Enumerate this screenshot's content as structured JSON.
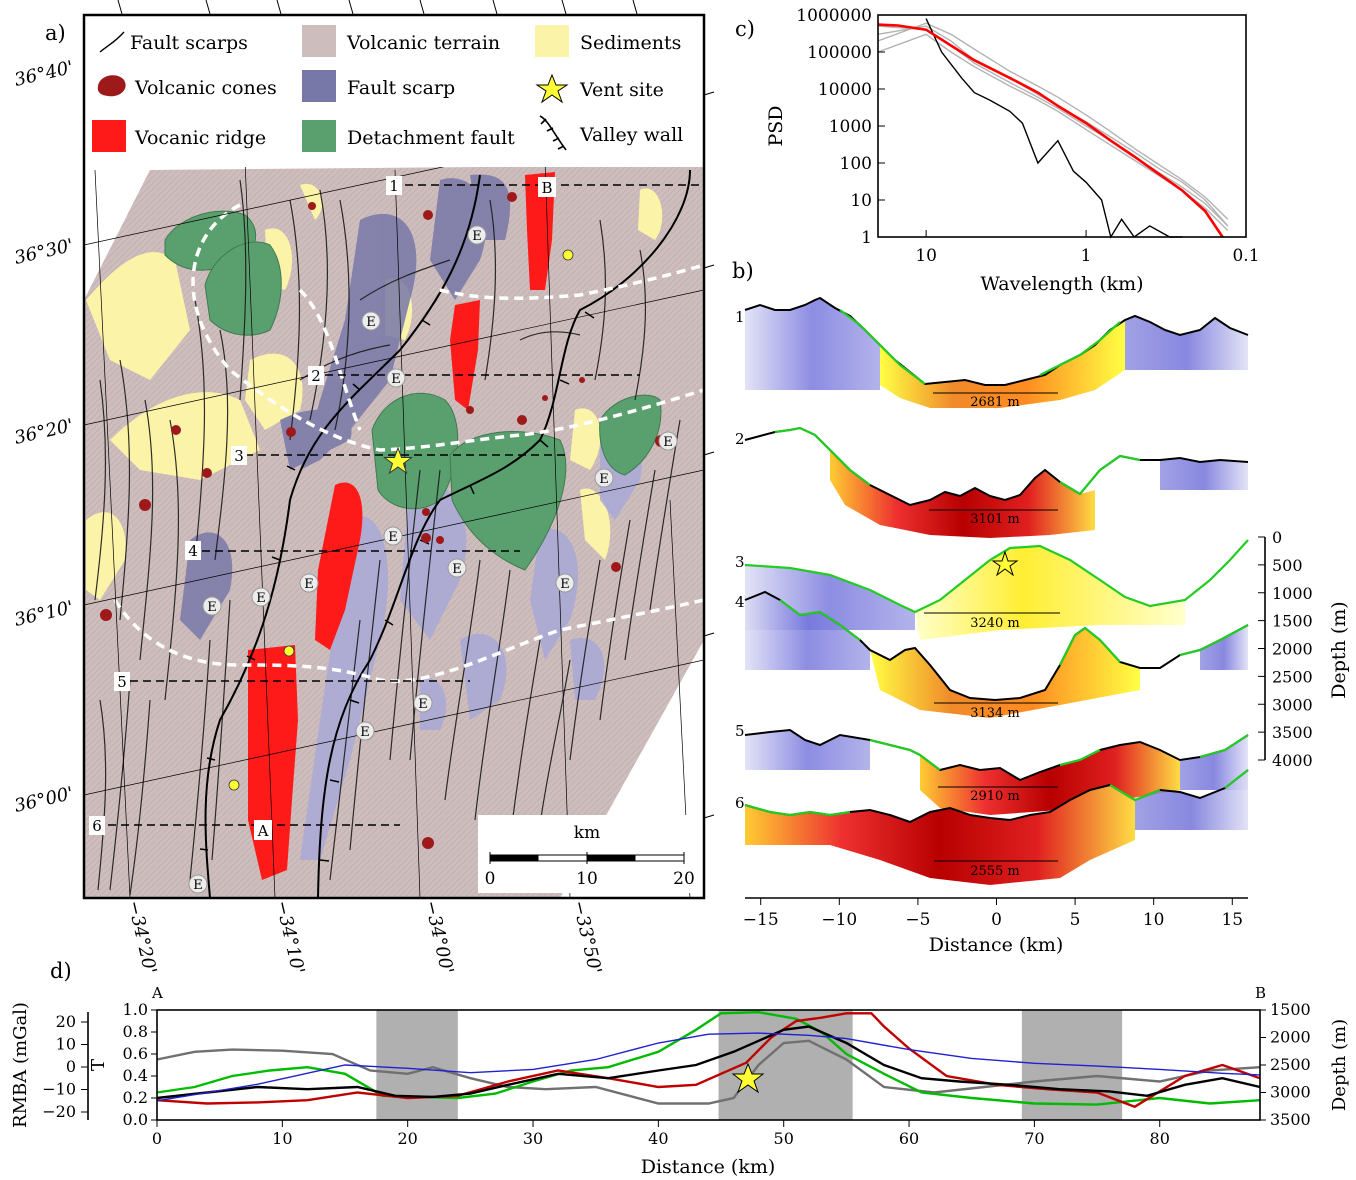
{
  "panels": {
    "a": {
      "label": "a)",
      "legend": [
        {
          "label": "Fault scarps",
          "symbol": "line",
          "color": "#000000"
        },
        {
          "label": "Volcanic terrain",
          "symbol": "box",
          "color": "#cdbdbd"
        },
        {
          "label": "Sediments",
          "symbol": "box",
          "color": "#fbf3a8"
        },
        {
          "label": "Volcanic cones",
          "symbol": "blob",
          "color": "#9e1a1a"
        },
        {
          "label": "Fault scarp",
          "symbol": "box",
          "color": "#7878a8"
        },
        {
          "label": "Vent site",
          "symbol": "star",
          "color": "#ffff33"
        },
        {
          "label": "Vocanic ridge",
          "symbol": "box",
          "color": "#ff1a1a"
        },
        {
          "label": "Detachment fault",
          "symbol": "box",
          "color": "#5aa06e"
        },
        {
          "label": "Valley wall",
          "symbol": "ticked-line",
          "color": "#000000"
        }
      ],
      "lat_labels": [
        "36°40'",
        "36°30'",
        "36°20'",
        "36°10'",
        "36°00'"
      ],
      "lon_labels": [
        "−34°20'",
        "−34°10'",
        "−34°00'",
        "−33°50'"
      ],
      "profile_labels": [
        "1",
        "2",
        "3",
        "4",
        "5",
        "6"
      ],
      "point_labels": [
        "A",
        "B"
      ],
      "domain_marker": "E",
      "scale_bar": {
        "unit": "km",
        "ticks": [
          "0",
          "10",
          "20"
        ]
      },
      "colors": {
        "volcanic_terrain": "#cdbdbd",
        "sediments": "#fbf3a8",
        "fault_scarp": "#7878a8",
        "volcanic_ridge": "#ff1a1a",
        "detachment": "#5aa06e",
        "cones": "#9e1a1a",
        "vent": "#ffff33"
      }
    },
    "b": {
      "label": "b)",
      "widths": [
        "2681 m",
        "3101 m",
        "3240 m",
        "3134 m",
        "2910 m",
        "2555 m"
      ]
    },
    "c": {
      "label": "c)"
    },
    "d": {
      "label": "d)",
      "end_labels": [
        "A",
        "B"
      ]
    }
  },
  "chart_data": [
    {
      "panel": "c",
      "type": "line",
      "xlabel": "Wavelength (km)",
      "ylabel": "PSD",
      "x_scale": "log",
      "x_reversed": true,
      "xlim": [
        20,
        0.1
      ],
      "x_ticks": [
        {
          "value": 10,
          "label": "10"
        },
        {
          "value": 1,
          "label": "1"
        },
        {
          "value": 0.1,
          "label": "0.1"
        }
      ],
      "y_scale": "log",
      "ylim": [
        1,
        1000000
      ],
      "y_ticks": [
        {
          "value": 1,
          "label": "1"
        },
        {
          "value": 10,
          "label": "10"
        },
        {
          "value": 100,
          "label": "100"
        },
        {
          "value": 1000,
          "label": "1000"
        },
        {
          "value": 10000,
          "label": "10000"
        },
        {
          "value": 100000,
          "label": "100000"
        },
        {
          "value": 1000000,
          "label": "1000000"
        }
      ],
      "series": [
        {
          "color": "#b3b3b3",
          "x": [
            20,
            10,
            7,
            5,
            3,
            2,
            1.5,
            1,
            0.7,
            0.5,
            0.35,
            0.25,
            0.18,
            0.13
          ],
          "y": [
            300000,
            500000,
            200000,
            60000,
            20000,
            7000,
            3500,
            1300,
            500,
            200,
            70,
            30,
            10,
            2
          ]
        },
        {
          "color": "#b3b3b3",
          "x": [
            20,
            10,
            7,
            5,
            3,
            2,
            1.5,
            1,
            0.7,
            0.5,
            0.35,
            0.25,
            0.18,
            0.13
          ],
          "y": [
            100000,
            300000,
            100000,
            40000,
            12000,
            5000,
            2500,
            800,
            300,
            120,
            45,
            18,
            6,
            1.5
          ]
        },
        {
          "color": "#b3b3b3",
          "x": [
            20,
            10,
            7,
            5,
            3,
            2,
            1.5,
            1,
            0.7,
            0.5,
            0.35,
            0.25,
            0.18,
            0.13
          ],
          "y": [
            200000,
            600000,
            300000,
            120000,
            30000,
            12000,
            6000,
            2000,
            700,
            250,
            90,
            35,
            12,
            3
          ]
        },
        {
          "color": "#b3b3b3",
          "x": [
            20,
            10,
            7,
            5,
            3,
            2,
            1.5,
            1,
            0.7,
            0.5,
            0.35,
            0.25,
            0.18,
            0.13
          ],
          "y": [
            500000,
            400000,
            150000,
            50000,
            15000,
            6000,
            3000,
            1000,
            400,
            150,
            55,
            22,
            8,
            2
          ]
        },
        {
          "color": "#000000",
          "x": [
            10,
            8,
            6,
            5,
            4,
            3,
            2.5,
            2,
            1.5,
            1.2,
            1,
            0.8,
            0.7,
            0.6,
            0.5,
            0.4,
            0.3,
            0.25
          ],
          "y": [
            800000,
            100000,
            20000,
            8000,
            5000,
            2500,
            1200,
            100,
            400,
            60,
            30,
            10,
            1,
            3,
            1,
            2,
            1,
            1
          ]
        },
        {
          "color": "#ff0000",
          "x": [
            20,
            15,
            10,
            7,
            5,
            3,
            2,
            1.5,
            1,
            0.7,
            0.5,
            0.35,
            0.25,
            0.18,
            0.14
          ],
          "y": [
            550000,
            520000,
            400000,
            150000,
            60000,
            20000,
            8000,
            3500,
            1200,
            400,
            150,
            50,
            18,
            5,
            1
          ]
        }
      ]
    },
    {
      "panel": "b",
      "type": "area",
      "xlabel": "Distance (km)",
      "ylabel": "Depth (m)",
      "xlim": [
        -16,
        16
      ],
      "x_ticks": [
        -15,
        -10,
        -5,
        0,
        5,
        10,
        15
      ],
      "depth_ticks": [
        0,
        500,
        1000,
        1500,
        2000,
        2500,
        3000,
        3500,
        4000
      ],
      "profiles": [
        {
          "label": "1",
          "width": "2681 m",
          "x": [
            -16,
            -14,
            -12,
            -11,
            -9,
            -7,
            -5,
            -3,
            -1,
            1,
            3,
            5,
            7,
            8.5,
            10,
            12,
            14,
            16
          ],
          "depth": [
            2300,
            1900,
            2000,
            1600,
            2100,
            2400,
            3000,
            3600,
            3700,
            3700,
            3600,
            3200,
            2300,
            2000,
            2500,
            2400,
            2000,
            2500
          ]
        },
        {
          "label": "2",
          "width": "3101 m",
          "x": [
            -16,
            -14,
            -12,
            -10,
            -8,
            -6,
            -4,
            -2,
            0,
            2,
            3,
            4,
            6,
            8,
            10,
            12,
            14,
            16
          ],
          "depth": [
            2200,
            2100,
            2000,
            2300,
            3000,
            3500,
            3800,
            3600,
            3800,
            3500,
            3700,
            3300,
            3100,
            2900,
            3100,
            3000,
            3100,
            3100
          ]
        }
      ],
      "featured_profile": {
        "label": "3",
        "width": "3240 m",
        "x": [
          -16,
          -13,
          -10,
          -7,
          -5,
          -4,
          -2,
          0,
          2,
          4,
          6,
          8,
          10,
          12,
          14,
          16
        ],
        "depth": [
          1700,
          1650,
          1800,
          2200,
          2500,
          2300,
          1800,
          1300,
          1400,
          1700,
          2100,
          2300,
          2400,
          2100,
          1700,
          1350
        ]
      }
    },
    {
      "panel": "d",
      "type": "line",
      "xlabel": "Distance (km)",
      "xlim": [
        0,
        88
      ],
      "x_ticks": [
        0,
        10,
        20,
        30,
        40,
        50,
        60,
        70,
        80
      ],
      "left_axes": [
        {
          "label": "RMBA (mGal)",
          "ticks": [
            20,
            10,
            0,
            -10,
            -20
          ]
        },
        {
          "label": "T",
          "ticks": [
            "1.0",
            "0.8",
            "0.6",
            "0.4",
            "0.2",
            "0.0"
          ],
          "ylim": [
            0,
            1
          ]
        }
      ],
      "right_axis": {
        "label": "Depth (m)",
        "ticks": [
          1500,
          2000,
          2500,
          3000,
          3500
        ],
        "ylim": [
          3500,
          1500
        ]
      },
      "shaded_intervals": [
        [
          17.5,
          24
        ],
        [
          44.8,
          55.5
        ],
        [
          69,
          77
        ]
      ],
      "vent_x": 47,
      "series": [
        {
          "color": "#707070",
          "unit": "T",
          "x": [
            0,
            3,
            6,
            10,
            14,
            17,
            20,
            22,
            25,
            28,
            31,
            35,
            40,
            44,
            46,
            48,
            50,
            52,
            55,
            58,
            62,
            66,
            70,
            75,
            80,
            84,
            88
          ],
          "y": [
            0.55,
            0.62,
            0.64,
            0.63,
            0.6,
            0.45,
            0.42,
            0.48,
            0.38,
            0.3,
            0.28,
            0.3,
            0.15,
            0.15,
            0.2,
            0.5,
            0.7,
            0.72,
            0.55,
            0.3,
            0.25,
            0.3,
            0.35,
            0.4,
            0.35,
            0.45,
            0.48
          ]
        },
        {
          "color": "#00bb00",
          "unit": "T",
          "x": [
            0,
            3,
            6,
            9,
            12,
            15,
            18,
            21,
            24,
            27,
            30,
            33,
            36,
            40,
            43,
            45,
            48,
            51,
            53,
            55,
            58,
            61,
            65,
            70,
            75,
            80,
            84,
            88
          ],
          "y": [
            0.25,
            0.3,
            0.4,
            0.45,
            0.48,
            0.42,
            0.22,
            0.21,
            0.2,
            0.24,
            0.35,
            0.45,
            0.48,
            0.62,
            0.82,
            0.97,
            0.98,
            0.92,
            0.8,
            0.6,
            0.42,
            0.25,
            0.2,
            0.15,
            0.14,
            0.2,
            0.15,
            0.18
          ]
        },
        {
          "color": "#c00000",
          "unit": "T",
          "x": [
            0,
            4,
            8,
            12,
            16,
            20,
            24,
            28,
            32,
            36,
            40,
            43,
            45,
            47,
            49,
            51,
            53,
            55,
            57,
            58,
            60,
            63,
            67,
            71,
            75,
            78,
            82,
            85,
            88
          ],
          "y": [
            0.18,
            0.15,
            0.16,
            0.18,
            0.25,
            0.2,
            0.22,
            0.35,
            0.45,
            0.38,
            0.3,
            0.32,
            0.42,
            0.52,
            0.75,
            0.9,
            0.93,
            0.97,
            0.97,
            0.85,
            0.65,
            0.4,
            0.32,
            0.28,
            0.25,
            0.12,
            0.4,
            0.5,
            0.38
          ]
        },
        {
          "color": "#000000",
          "unit": "T",
          "x": [
            0,
            4,
            8,
            12,
            16,
            19,
            22,
            25,
            28,
            32,
            36,
            40,
            43,
            46,
            48,
            50,
            52,
            55,
            58,
            61,
            64,
            68,
            72,
            76,
            79,
            82,
            85,
            88
          ],
          "y": [
            0.2,
            0.25,
            0.3,
            0.28,
            0.3,
            0.22,
            0.21,
            0.24,
            0.32,
            0.42,
            0.38,
            0.45,
            0.5,
            0.62,
            0.72,
            0.82,
            0.85,
            0.7,
            0.5,
            0.38,
            0.35,
            0.32,
            0.28,
            0.26,
            0.22,
            0.32,
            0.38,
            0.3
          ]
        },
        {
          "color": "#2020d0",
          "unit": "Depth (m)",
          "x": [
            0,
            8,
            15,
            20,
            25,
            30,
            35,
            40,
            44,
            48,
            52,
            55,
            60,
            65,
            70,
            75,
            80,
            85,
            88
          ],
          "y": [
            3150,
            2850,
            2500,
            2560,
            2640,
            2580,
            2400,
            2100,
            1940,
            1920,
            1960,
            2020,
            2220,
            2380,
            2470,
            2520,
            2580,
            2650,
            2680
          ]
        }
      ]
    }
  ]
}
